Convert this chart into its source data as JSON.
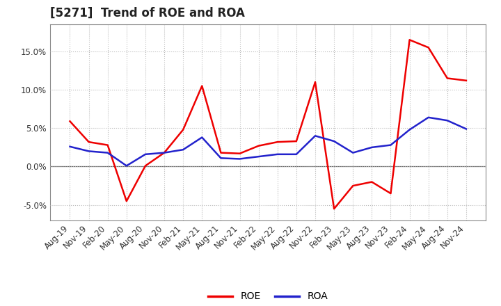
{
  "title": "[5271]  Trend of ROE and ROA",
  "x_labels": [
    "Aug-19",
    "Nov-19",
    "Feb-20",
    "May-20",
    "Aug-20",
    "Nov-20",
    "Feb-21",
    "May-21",
    "Aug-21",
    "Nov-21",
    "Feb-22",
    "May-22",
    "Aug-22",
    "Nov-22",
    "Feb-23",
    "May-23",
    "Aug-23",
    "Nov-23",
    "Feb-24",
    "May-24",
    "Aug-24",
    "Nov-24"
  ],
  "roe": [
    5.9,
    3.2,
    2.8,
    -4.5,
    0.1,
    1.8,
    4.8,
    10.5,
    1.8,
    1.7,
    2.7,
    3.2,
    3.3,
    11.0,
    -5.5,
    -2.5,
    -2.0,
    -3.5,
    16.5,
    15.5,
    11.5,
    11.2
  ],
  "roa": [
    2.6,
    2.0,
    1.8,
    0.1,
    1.6,
    1.8,
    2.2,
    3.8,
    1.1,
    1.0,
    1.3,
    1.6,
    1.6,
    4.0,
    3.3,
    1.8,
    2.5,
    2.8,
    4.8,
    6.4,
    6.0,
    4.9
  ],
  "roe_color": "#ee0000",
  "roa_color": "#2222cc",
  "bg_color": "#ffffff",
  "plot_bg_color": "#ffffff",
  "grid_color": "#bbbbbb",
  "ylim": [
    -7.0,
    18.5
  ],
  "yticks": [
    -5.0,
    0.0,
    5.0,
    10.0,
    15.0
  ],
  "line_width": 1.8,
  "title_fontsize": 12,
  "tick_fontsize": 8.5,
  "legend_fontsize": 10
}
